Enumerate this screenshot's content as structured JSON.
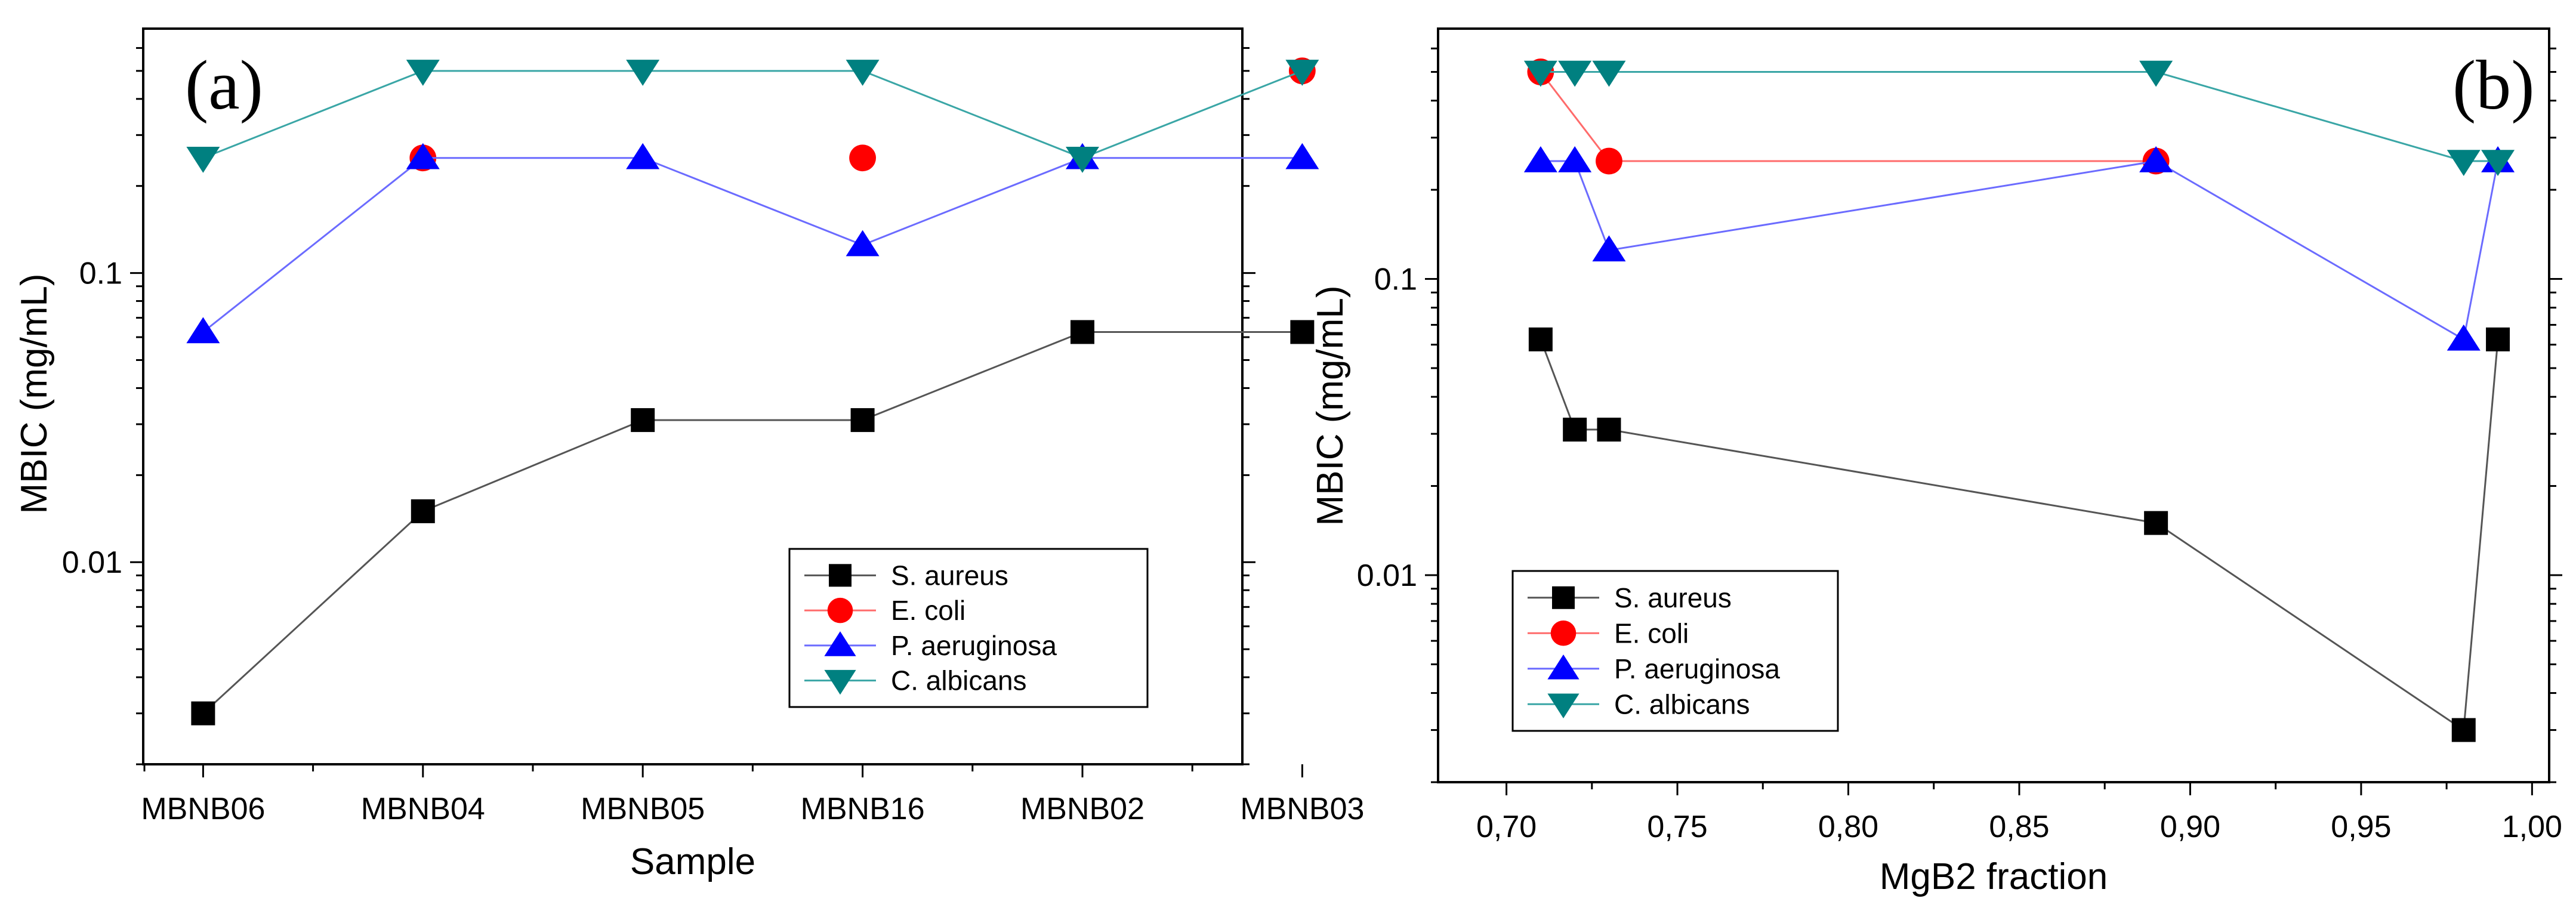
{
  "chart_data": [
    {
      "type": "line",
      "panel_label": "(a)",
      "xlabel": "Sample",
      "ylabel": "MBIC (mg/mL)",
      "yscale": "log",
      "ylim": [
        0.002,
        0.7
      ],
      "y_tick_values": [
        0.01,
        0.1
      ],
      "y_tick_labels": [
        "0.01",
        "0.1"
      ],
      "x_axis": "categorical",
      "categories": [
        "MBNB06",
        "MBNB04",
        "MBNB05",
        "MBNB16",
        "MBNB02",
        "MBNB03"
      ],
      "legend_position": "bottom-right",
      "series": [
        {
          "name": "S. aureus",
          "color": "#000000",
          "line_color": "#555555",
          "marker": "square",
          "connect": true,
          "values": [
            0.003,
            0.015,
            0.031,
            0.031,
            0.0625,
            0.0625
          ]
        },
        {
          "name": "E. coli",
          "color": "#ff0000",
          "line_color": "#ff6b6b",
          "marker": "circle",
          "connect": false,
          "values": [
            null,
            0.25,
            null,
            0.25,
            null,
            0.5
          ]
        },
        {
          "name": "P. aeruginosa",
          "color": "#0000ff",
          "line_color": "#6b6bff",
          "marker": "triangle-up",
          "connect": true,
          "values": [
            0.0625,
            0.25,
            0.25,
            0.125,
            0.25,
            0.25
          ]
        },
        {
          "name": "C. albicans",
          "color": "#008080",
          "line_color": "#3aa6a6",
          "marker": "triangle-down",
          "connect": true,
          "values": [
            0.25,
            0.5,
            0.5,
            0.5,
            0.25,
            0.5
          ]
        }
      ]
    },
    {
      "type": "line",
      "panel_label": "(b)",
      "xlabel": "MgB2 fraction",
      "ylabel": "MBIC (mg/mL)",
      "yscale": "log",
      "ylim": [
        0.002,
        0.7
      ],
      "xlim": [
        0.68,
        1.005
      ],
      "x_tick_values": [
        0.7,
        0.75,
        0.8,
        0.85,
        0.9,
        0.95,
        1.0
      ],
      "x_tick_labels": [
        "0,70",
        "0,75",
        "0,80",
        "0,85",
        "0,90",
        "0,95",
        "1,00"
      ],
      "y_tick_values": [
        0.01,
        0.1
      ],
      "y_tick_labels": [
        "0.01",
        "0.1"
      ],
      "legend_position": "bottom-left",
      "series": [
        {
          "name": "S. aureus",
          "color": "#000000",
          "line_color": "#555555",
          "marker": "square",
          "connect": true,
          "x": [
            0.71,
            0.72,
            0.73,
            0.89,
            0.98,
            0.99
          ],
          "values": [
            0.0625,
            0.031,
            0.031,
            0.015,
            0.003,
            0.0625
          ]
        },
        {
          "name": "E. coli",
          "color": "#ff0000",
          "line_color": "#ff6b6b",
          "marker": "circle",
          "connect": true,
          "x": [
            0.71,
            0.73,
            0.89
          ],
          "values": [
            0.5,
            0.25,
            0.25
          ]
        },
        {
          "name": "P. aeruginosa",
          "color": "#0000ff",
          "line_color": "#6b6bff",
          "marker": "triangle-up",
          "connect": true,
          "x": [
            0.71,
            0.72,
            0.73,
            0.89,
            0.98,
            0.99
          ],
          "values": [
            0.25,
            0.25,
            0.125,
            0.25,
            0.0625,
            0.25
          ]
        },
        {
          "name": "C. albicans",
          "color": "#008080",
          "line_color": "#3aa6a6",
          "marker": "triangle-down",
          "connect": true,
          "x": [
            0.71,
            0.72,
            0.73,
            0.89,
            0.98,
            0.99
          ],
          "values": [
            0.5,
            0.5,
            0.5,
            0.5,
            0.25,
            0.25
          ]
        }
      ]
    }
  ]
}
